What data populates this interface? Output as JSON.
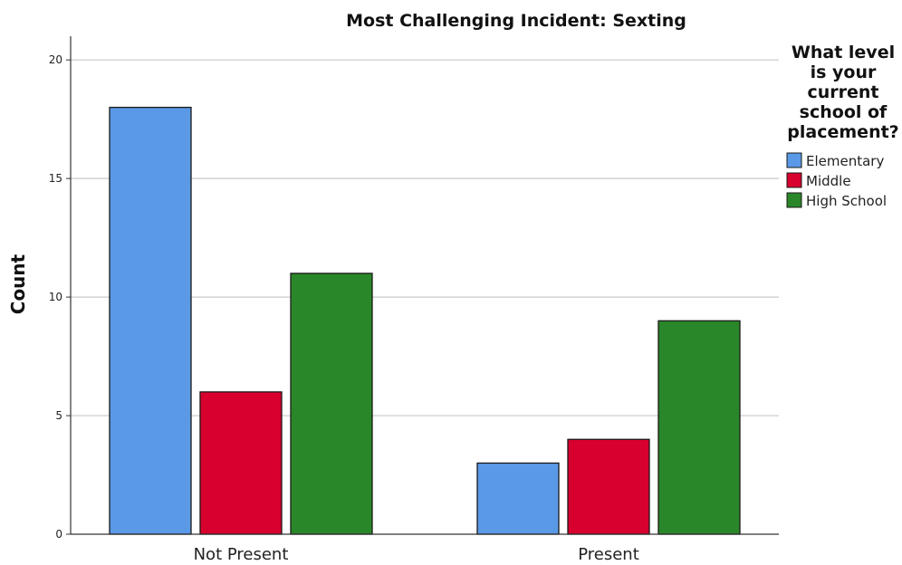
{
  "chart_data": {
    "type": "bar",
    "title": "Most Challenging Incident: Sexting",
    "xlabel": "",
    "ylabel": "Count",
    "categories": [
      "Not Present",
      "Present"
    ],
    "series": [
      {
        "name": "Elementary",
        "values": [
          18,
          3
        ],
        "color": "#5A99E6"
      },
      {
        "name": "Middle",
        "values": [
          6,
          4
        ],
        "color": "#D8002E"
      },
      {
        "name": "High School",
        "values": [
          11,
          9
        ],
        "color": "#2A8729"
      }
    ],
    "ylim": [
      0,
      21
    ],
    "yticks": [
      0,
      5,
      10,
      15,
      20
    ],
    "grid": true,
    "legend": {
      "title_lines": [
        "What level",
        "is your",
        "current",
        "school of",
        "placement?"
      ],
      "position": "right"
    }
  }
}
